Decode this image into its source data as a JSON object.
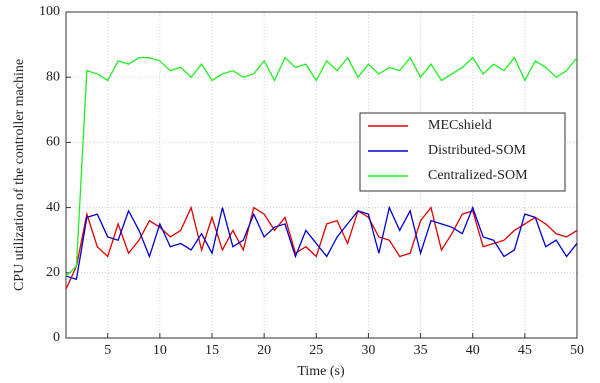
{
  "chart_data": {
    "type": "line",
    "x_label": "Time (s)",
    "y_label": "CPU utilization of the controller machine",
    "x": [
      1,
      2,
      3,
      4,
      5,
      6,
      7,
      8,
      9,
      10,
      11,
      12,
      13,
      14,
      15,
      16,
      17,
      18,
      19,
      20,
      21,
      22,
      23,
      24,
      25,
      26,
      27,
      28,
      29,
      30,
      31,
      32,
      33,
      34,
      35,
      36,
      37,
      38,
      39,
      40,
      41,
      42,
      43,
      44,
      45,
      46,
      47,
      48,
      49,
      50
    ],
    "series": [
      {
        "name": "MECshield",
        "color": "#e00000",
        "values": [
          15,
          22,
          38,
          28,
          25,
          35,
          26,
          30,
          36,
          34,
          31,
          33,
          40,
          27,
          37,
          27,
          33,
          27,
          40,
          38,
          33,
          37,
          26,
          28,
          25,
          35,
          36,
          29,
          39,
          37,
          31,
          30,
          25,
          26,
          36,
          40,
          27,
          32,
          38,
          39,
          28,
          29,
          30,
          33,
          35,
          37,
          35,
          32,
          31,
          33
        ]
      },
      {
        "name": "Distributed-SOM",
        "color": "#0000d0",
        "values": [
          19,
          18,
          37,
          38,
          31,
          30,
          39,
          33,
          25,
          35,
          28,
          29,
          27,
          32,
          26,
          40,
          28,
          30,
          38,
          31,
          34,
          35,
          25,
          33,
          29,
          25,
          31,
          35,
          39,
          38,
          26,
          40,
          33,
          39,
          26,
          36,
          35,
          34,
          32,
          40,
          31,
          30,
          25,
          27,
          38,
          37,
          28,
          30,
          25,
          29
        ]
      },
      {
        "name": "Centralized-SOM",
        "color": "#22ee22",
        "values": [
          19,
          22,
          82,
          81,
          79,
          85,
          84,
          86,
          86,
          85,
          82,
          83,
          80,
          84,
          79,
          81,
          82,
          80,
          81,
          85,
          79,
          86,
          83,
          84,
          79,
          85,
          82,
          86,
          80,
          84,
          81,
          83,
          82,
          86,
          80,
          84,
          79,
          81,
          83,
          86,
          81,
          84,
          82,
          86,
          79,
          85,
          83,
          80,
          82,
          86
        ]
      }
    ],
    "xlim": [
      1,
      50
    ],
    "xticks": [
      5,
      10,
      15,
      20,
      25,
      30,
      35,
      40,
      45,
      50
    ],
    "ylim": [
      0,
      100
    ],
    "yticks": [
      0,
      20,
      40,
      60,
      80,
      100
    ],
    "grid": true,
    "legend_position": "right"
  }
}
